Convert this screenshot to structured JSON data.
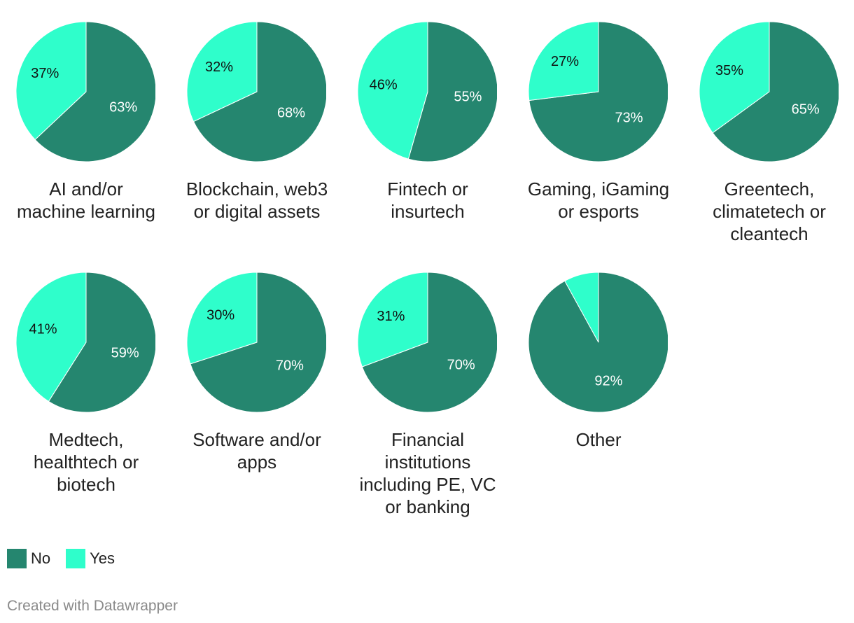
{
  "chart_data": {
    "type": "pie",
    "colors": {
      "No": "#25866F",
      "Yes": "#2FFECB"
    },
    "legend": [
      {
        "label": "No",
        "color": "#25866F"
      },
      {
        "label": "Yes",
        "color": "#2FFECB"
      }
    ],
    "panels": [
      {
        "title": "AI and/or machine learning",
        "no": 63,
        "yes": 37
      },
      {
        "title": "Blockchain, web3 or digital assets",
        "no": 68,
        "yes": 32
      },
      {
        "title": "Fintech or insurtech",
        "no": 55,
        "yes": 46
      },
      {
        "title": "Gaming, iGaming or esports",
        "no": 73,
        "yes": 27
      },
      {
        "title": "Greentech, climatetech or cleantech",
        "no": 65,
        "yes": 35
      },
      {
        "title": "Medtech, healthtech or biotech",
        "no": 59,
        "yes": 41
      },
      {
        "title": "Software and/or apps",
        "no": 70,
        "yes": 30
      },
      {
        "title": "Financial institutions including PE, VC or banking",
        "no": 70,
        "yes": 31
      },
      {
        "title": "Other",
        "no": 92,
        "yes": 8,
        "yes_label_shown": false
      }
    ],
    "legend_position": "bottom-left"
  },
  "footer": {
    "credit": "Created with Datawrapper"
  }
}
